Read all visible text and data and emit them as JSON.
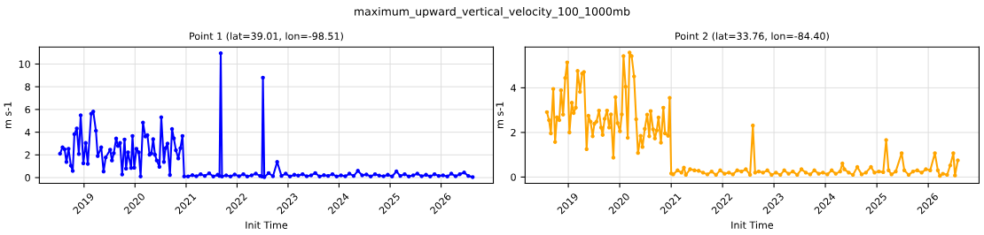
{
  "chart_data": [
    {
      "type": "line",
      "title": "Point 1 (lat=39.01, lon=-98.51)",
      "xlabel": "Init Time",
      "ylabel": "m s-1",
      "annotations": [
        "maximum_upward_vertical_velocity_100_1000mb"
      ],
      "x": [
        "2018-07-13",
        "2018-07-31",
        "2018-08-15",
        "2018-08-28",
        "2018-09-12",
        "2018-09-29",
        "2018-10-12",
        "2018-10-24",
        "2018-11-10",
        "2018-11-25",
        "2018-12-08",
        "2018-12-27",
        "2019-01-13",
        "2019-01-28",
        "2019-02-21",
        "2019-03-08",
        "2019-03-27",
        "2019-04-09",
        "2019-05-04",
        "2019-05-21",
        "2019-06-05",
        "2019-07-07",
        "2019-07-20",
        "2019-08-02",
        "2019-08-19",
        "2019-09-01",
        "2019-09-16",
        "2019-10-01",
        "2019-10-18",
        "2019-10-29",
        "2019-11-12",
        "2019-12-04",
        "2019-12-14",
        "2019-12-27",
        "2020-01-11",
        "2020-01-28",
        "2020-02-10",
        "2020-02-27",
        "2020-03-15",
        "2020-03-30",
        "2020-04-14",
        "2020-04-27",
        "2020-05-10",
        "2020-05-23",
        "2020-06-05",
        "2020-06-24",
        "2020-07-07",
        "2020-07-26",
        "2020-08-06",
        "2020-08-21",
        "2020-09-07",
        "2020-09-22",
        "2020-10-05",
        "2020-10-20",
        "2020-11-06",
        "2020-11-21",
        "2020-12-06",
        "2020-12-18",
        "2021-01-15",
        "2021-02-15",
        "2021-03-15",
        "2021-04-15",
        "2021-05-15",
        "2021-06-15",
        "2021-07-15",
        "2021-08-15",
        "2021-08-28",
        "2021-09-06",
        "2021-09-15",
        "2021-10-15",
        "2021-11-15",
        "2021-12-15",
        "2022-01-15",
        "2022-02-15",
        "2022-03-15",
        "2022-04-15",
        "2022-05-15",
        "2022-06-15",
        "2022-06-28",
        "2022-07-05",
        "2022-07-15",
        "2022-08-15",
        "2022-09-15",
        "2022-10-15",
        "2022-11-15",
        "2022-12-15",
        "2023-01-15",
        "2023-02-15",
        "2023-03-15",
        "2023-04-15",
        "2023-05-15",
        "2023-06-15",
        "2023-07-15",
        "2023-08-15",
        "2023-09-15",
        "2023-10-15",
        "2023-11-15",
        "2023-12-15",
        "2024-01-15",
        "2024-02-15",
        "2024-03-15",
        "2024-04-15",
        "2024-05-15",
        "2024-06-15",
        "2024-07-15",
        "2024-08-15",
        "2024-09-15",
        "2024-10-15",
        "2024-11-15",
        "2024-12-15",
        "2025-01-15",
        "2025-02-15",
        "2025-03-15",
        "2025-04-15",
        "2025-05-15",
        "2025-06-15",
        "2025-07-15",
        "2025-08-15",
        "2025-09-15",
        "2025-10-15",
        "2025-11-15",
        "2025-12-15",
        "2026-01-15",
        "2026-02-15",
        "2026-03-15",
        "2026-04-15",
        "2026-05-15",
        "2026-06-15",
        "2026-07-15",
        "2026-08-15"
      ],
      "series": [
        {
          "color": "#0000ff",
          "values": [
            2.1,
            2.67,
            2.49,
            1.38,
            2.54,
            1.05,
            0.59,
            3.82,
            4.33,
            2.08,
            5.49,
            1.26,
            3.05,
            1.21,
            5.62,
            5.82,
            4.13,
            1.9,
            2.67,
            0.54,
            1.77,
            2.46,
            1.51,
            2.15,
            3.44,
            2.79,
            3.05,
            0.28,
            3.36,
            0.79,
            2.23,
            0.85,
            3.67,
            0.87,
            2.54,
            2.23,
            0.1,
            4.85,
            3.62,
            3.74,
            2.02,
            2.13,
            3.38,
            2.02,
            1.51,
            0.95,
            5.31,
            1.38,
            2.59,
            3.0,
            0.23,
            4.28,
            3.46,
            2.41,
            1.69,
            2.59,
            3.67,
            0.1,
            0.1,
            0.22,
            0.12,
            0.3,
            0.15,
            0.38,
            0.1,
            0.25,
            0.15,
            10.95,
            0.1,
            0.2,
            0.1,
            0.28,
            0.12,
            0.3,
            0.1,
            0.2,
            0.35,
            0.15,
            0.1,
            8.8,
            0.05,
            0.4,
            0.12,
            1.38,
            0.15,
            0.35,
            0.1,
            0.25,
            0.18,
            0.3,
            0.12,
            0.2,
            0.4,
            0.1,
            0.22,
            0.15,
            0.3,
            0.1,
            0.2,
            0.12,
            0.35,
            0.15,
            0.6,
            0.2,
            0.28,
            0.1,
            0.3,
            0.18,
            0.12,
            0.25,
            0.1,
            0.55,
            0.15,
            0.3,
            0.1,
            0.2,
            0.35,
            0.12,
            0.25,
            0.1,
            0.3,
            0.15,
            0.2,
            0.1,
            0.35,
            0.12,
            0.3,
            0.45,
            0.15,
            0.05
          ]
        }
      ],
      "xlim": [
        "2018-02-15",
        "2027-01-10"
      ],
      "ylim": [
        -0.5,
        11.5
      ],
      "xticks": [
        {
          "value": "2019-01-01",
          "label": "2019"
        },
        {
          "value": "2020-01-01",
          "label": "2020"
        },
        {
          "value": "2021-01-01",
          "label": "2021"
        },
        {
          "value": "2022-01-01",
          "label": "2022"
        },
        {
          "value": "2023-01-01",
          "label": "2023"
        },
        {
          "value": "2024-01-01",
          "label": "2024"
        },
        {
          "value": "2025-01-01",
          "label": "2025"
        },
        {
          "value": "2026-01-01",
          "label": "2026"
        }
      ],
      "yticks": [
        0,
        2,
        4,
        6,
        8,
        10
      ],
      "grid": true,
      "marker": "circle",
      "line_style": "solid"
    },
    {
      "type": "line",
      "title": "Point 2 (lat=33.76, lon=-84.40)",
      "xlabel": "Init Time",
      "ylabel": "m s-1",
      "x": [
        "2018-08-02",
        "2018-08-17",
        "2018-08-30",
        "2018-09-16",
        "2018-09-29",
        "2018-10-12",
        "2018-10-29",
        "2018-11-10",
        "2018-11-25",
        "2018-12-10",
        "2018-12-24",
        "2019-01-09",
        "2019-01-26",
        "2019-02-08",
        "2019-02-23",
        "2019-03-08",
        "2019-03-25",
        "2019-04-09",
        "2019-04-22",
        "2019-05-11",
        "2019-05-24",
        "2019-06-08",
        "2019-06-23",
        "2019-07-05",
        "2019-07-20",
        "2019-08-07",
        "2019-08-22",
        "2019-09-02",
        "2019-09-16",
        "2019-10-03",
        "2019-10-18",
        "2019-10-31",
        "2019-11-17",
        "2019-12-02",
        "2019-12-17",
        "2020-01-03",
        "2020-01-16",
        "2020-01-28",
        "2020-02-12",
        "2020-02-27",
        "2020-03-11",
        "2020-03-26",
        "2020-04-12",
        "2020-04-27",
        "2020-05-10",
        "2020-05-29",
        "2020-06-11",
        "2020-06-27",
        "2020-07-14",
        "2020-07-29",
        "2020-08-08",
        "2020-08-25",
        "2020-09-07",
        "2020-09-20",
        "2020-10-03",
        "2020-10-20",
        "2020-11-06",
        "2020-11-18",
        "2020-12-10",
        "2020-12-21",
        "2021-01-01",
        "2021-01-15",
        "2021-02-15",
        "2021-03-15",
        "2021-04-01",
        "2021-04-15",
        "2021-05-15",
        "2021-06-15",
        "2021-07-15",
        "2021-08-15",
        "2021-09-15",
        "2021-10-15",
        "2021-11-15",
        "2021-12-15",
        "2022-01-15",
        "2022-02-15",
        "2022-03-15",
        "2022-04-15",
        "2022-05-15",
        "2022-06-15",
        "2022-07-15",
        "2022-08-04",
        "2022-08-20",
        "2022-09-15",
        "2022-10-15",
        "2022-11-15",
        "2022-12-15",
        "2023-01-15",
        "2023-02-15",
        "2023-03-15",
        "2023-04-15",
        "2023-05-15",
        "2023-06-15",
        "2023-07-15",
        "2023-08-15",
        "2023-09-15",
        "2023-10-15",
        "2023-11-15",
        "2023-12-15",
        "2024-01-15",
        "2024-02-15",
        "2024-03-15",
        "2024-04-15",
        "2024-05-01",
        "2024-05-15",
        "2024-06-15",
        "2024-07-15",
        "2024-08-15",
        "2024-09-15",
        "2024-10-15",
        "2024-11-20",
        "2024-12-15",
        "2025-01-15",
        "2025-02-15",
        "2025-03-08",
        "2025-03-25",
        "2025-04-15",
        "2025-05-15",
        "2025-06-26",
        "2025-07-15",
        "2025-08-15",
        "2025-09-15",
        "2025-10-15",
        "2025-11-15",
        "2025-12-15",
        "2026-01-15",
        "2026-02-17",
        "2026-03-10",
        "2026-03-25",
        "2026-04-15",
        "2026-05-15",
        "2026-06-06",
        "2026-06-28",
        "2026-07-10",
        "2026-07-30"
      ],
      "series": [
        {
          "color": "#ffa500",
          "values": [
            2.91,
            2.55,
            1.96,
            3.95,
            1.57,
            2.68,
            2.55,
            3.89,
            2.8,
            4.44,
            5.14,
            2.0,
            3.33,
            2.87,
            3.11,
            4.76,
            3.82,
            4.64,
            4.71,
            1.25,
            2.75,
            2.48,
            1.83,
            2.39,
            2.48,
            2.98,
            2.22,
            1.89,
            2.61,
            2.98,
            2.22,
            2.81,
            0.87,
            3.58,
            2.42,
            2.05,
            2.81,
            5.42,
            4.05,
            1.76,
            5.58,
            5.42,
            4.51,
            2.59,
            1.08,
            1.85,
            1.35,
            2.16,
            2.8,
            1.83,
            2.96,
            2.14,
            1.73,
            2.09,
            2.67,
            1.54,
            3.11,
            1.96,
            1.85,
            3.55,
            0.16,
            0.12,
            0.3,
            0.2,
            0.42,
            0.1,
            0.35,
            0.3,
            0.28,
            0.2,
            0.12,
            0.25,
            0.1,
            0.3,
            0.15,
            0.2,
            0.12,
            0.3,
            0.25,
            0.35,
            0.1,
            2.31,
            0.2,
            0.25,
            0.2,
            0.3,
            0.1,
            0.2,
            0.1,
            0.3,
            0.15,
            0.25,
            0.1,
            0.35,
            0.2,
            0.12,
            0.3,
            0.15,
            0.2,
            0.12,
            0.3,
            0.15,
            0.25,
            0.61,
            0.35,
            0.2,
            0.1,
            0.45,
            0.12,
            0.2,
            0.45,
            0.2,
            0.25,
            0.22,
            1.66,
            0.3,
            0.12,
            0.25,
            1.07,
            0.3,
            0.1,
            0.25,
            0.3,
            0.2,
            0.35,
            0.3,
            1.07,
            0.3,
            0.05,
            0.15,
            0.1,
            0.52,
            1.07,
            0.07,
            0.75
          ]
        }
      ],
      "xlim": [
        "2018-02-28",
        "2026-12-28"
      ],
      "ylim": [
        -0.28,
        5.83
      ],
      "xticks": [
        {
          "value": "2019-01-01",
          "label": "2019"
        },
        {
          "value": "2020-01-01",
          "label": "2020"
        },
        {
          "value": "2021-01-01",
          "label": "2021"
        },
        {
          "value": "2022-01-01",
          "label": "2022"
        },
        {
          "value": "2023-01-01",
          "label": "2023"
        },
        {
          "value": "2024-01-01",
          "label": "2024"
        },
        {
          "value": "2025-01-01",
          "label": "2025"
        },
        {
          "value": "2026-01-01",
          "label": "2026"
        }
      ],
      "yticks": [
        0,
        2,
        4
      ],
      "grid": true,
      "marker": "circle",
      "line_style": "solid"
    }
  ]
}
